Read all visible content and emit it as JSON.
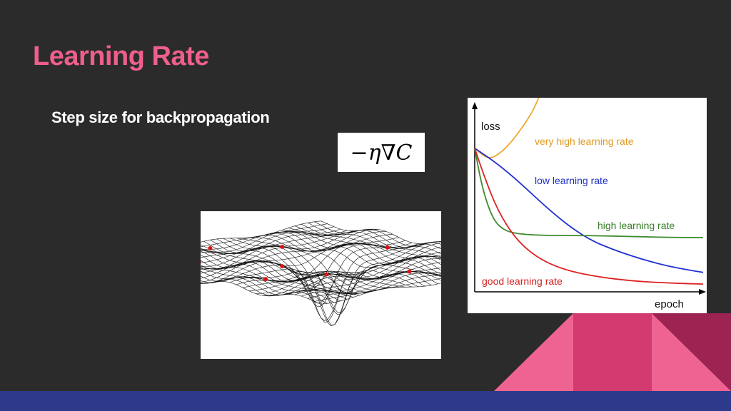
{
  "slide": {
    "title": "Learning Rate",
    "subtitle": "Step size for backpropagation",
    "formula": "−η∇C"
  },
  "colors": {
    "background": "#2b2b2b",
    "title": "#ee5f8c",
    "bottom_bar": "#2d3a8c",
    "triangle_light": "#ef6392",
    "triangle_mid": "#d33a70",
    "triangle_dark": "#9c2352"
  },
  "chart_data": {
    "type": "line",
    "xlabel": "epoch",
    "ylabel": "loss",
    "series": [
      {
        "name": "very high learning rate",
        "color": "#f0a830",
        "points": [
          [
            0,
            0.74
          ],
          [
            0.06,
            0.68
          ],
          [
            0.12,
            0.72
          ],
          [
            0.18,
            0.8
          ],
          [
            0.25,
            0.92
          ],
          [
            0.28,
            1.0
          ]
        ]
      },
      {
        "name": "low learning rate",
        "color": "#2030d0",
        "points": [
          [
            0,
            0.74
          ],
          [
            0.1,
            0.66
          ],
          [
            0.2,
            0.56
          ],
          [
            0.3,
            0.45
          ],
          [
            0.4,
            0.35
          ],
          [
            0.5,
            0.27
          ],
          [
            0.6,
            0.22
          ],
          [
            0.7,
            0.18
          ],
          [
            0.8,
            0.145
          ],
          [
            0.9,
            0.12
          ],
          [
            1.0,
            0.1
          ]
        ]
      },
      {
        "name": "high learning rate",
        "color": "#3f8a2e",
        "points": [
          [
            0,
            0.74
          ],
          [
            0.03,
            0.55
          ],
          [
            0.07,
            0.4
          ],
          [
            0.11,
            0.33
          ],
          [
            0.17,
            0.3
          ],
          [
            0.3,
            0.29
          ],
          [
            0.5,
            0.29
          ],
          [
            0.7,
            0.285
          ],
          [
            0.85,
            0.28
          ],
          [
            1.0,
            0.28
          ]
        ]
      },
      {
        "name": "good learning rate",
        "color": "#dd2222",
        "points": [
          [
            0,
            0.74
          ],
          [
            0.04,
            0.6
          ],
          [
            0.1,
            0.42
          ],
          [
            0.18,
            0.27
          ],
          [
            0.28,
            0.17
          ],
          [
            0.4,
            0.11
          ],
          [
            0.55,
            0.075
          ],
          [
            0.7,
            0.055
          ],
          [
            0.85,
            0.045
          ],
          [
            1.0,
            0.04
          ]
        ]
      }
    ]
  }
}
